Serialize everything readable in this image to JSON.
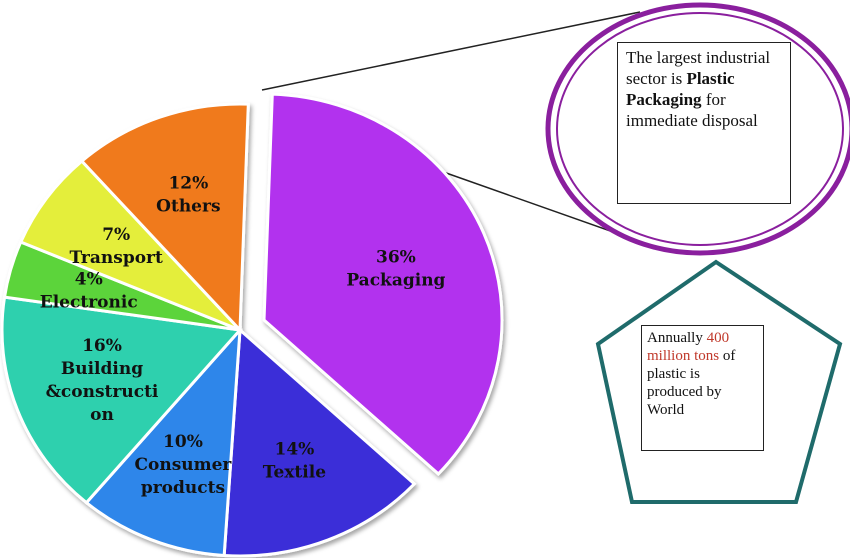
{
  "chart_data": {
    "type": "pie",
    "exploded": "Packaging",
    "slices": [
      {
        "pct_label": "36%",
        "name": "Packaging",
        "value": 36,
        "color": "#b233ee"
      },
      {
        "pct_label": "14%",
        "name": "Textile",
        "value": 14,
        "color": "#3a2fd8"
      },
      {
        "pct_label": "10%",
        "name_lines": [
          "Consumer",
          "products"
        ],
        "value": 10,
        "color": "#2f86ea"
      },
      {
        "pct_label": "16%",
        "name_lines": [
          "Building",
          "&constructi",
          "on"
        ],
        "value": 16,
        "color": "#2fd0ae"
      },
      {
        "pct_label": "4%",
        "name": "Electronic",
        "value": 4,
        "color": "#5cd43a"
      },
      {
        "pct_label": "7%",
        "name": "Transport",
        "value": 7,
        "color": "#e4ee3a"
      },
      {
        "pct_label": "12%",
        "name": "Others",
        "value": 12,
        "color": "#f07a1e"
      }
    ]
  },
  "callouts": {
    "largest": {
      "line1": "The largest industrial sector is ",
      "bold": "Plastic Packaging",
      "line2": " for immediate disposal",
      "ring_color": "#8a1f9e"
    },
    "annual": {
      "pre": "Annually ",
      "highlight": "400 million tons",
      "post": " of plastic is produced by World",
      "shape_color": "#1f6b6b"
    }
  }
}
